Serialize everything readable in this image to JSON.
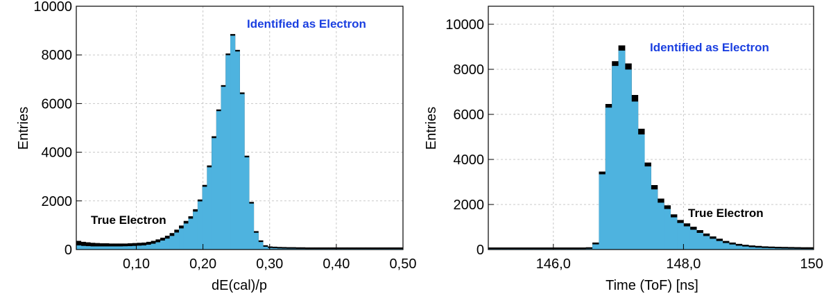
{
  "chart_data": [
    {
      "type": "bar",
      "xlabel": "dE(cal)/p",
      "ylabel": "Entries",
      "xlim": [
        0.01,
        0.5
      ],
      "ylim": [
        0,
        10000
      ],
      "x_ticks": [
        "0,10",
        "0,20",
        "0,30",
        "0,40",
        "0,50"
      ],
      "x_tick_values": [
        0.1,
        0.2,
        0.3,
        0.4,
        0.5
      ],
      "y_ticks": [
        "0",
        "2000",
        "4000",
        "6000",
        "8000",
        "10000"
      ],
      "y_tick_values": [
        0,
        2000,
        4000,
        6000,
        8000,
        10000
      ],
      "grid": true,
      "bin_width": 0.007,
      "annotations": [
        {
          "text": "Identified as Electron",
          "color": "#1a3fe0"
        },
        {
          "text": "True Electron",
          "color": "#000000"
        }
      ],
      "series": [
        {
          "name": "True Electron",
          "color": "#000000",
          "x": [
            0.01,
            0.017,
            0.024,
            0.031,
            0.038,
            0.045,
            0.052,
            0.059,
            0.066,
            0.073,
            0.08,
            0.087,
            0.094,
            0.101,
            0.108,
            0.115,
            0.122,
            0.129,
            0.136,
            0.143,
            0.15,
            0.157,
            0.164,
            0.171,
            0.178,
            0.185,
            0.192,
            0.199,
            0.206,
            0.213,
            0.22,
            0.227,
            0.234,
            0.241,
            0.248,
            0.255,
            0.262,
            0.269,
            0.276,
            0.283,
            0.29,
            0.297,
            0.304,
            0.311,
            0.318,
            0.325,
            0.332,
            0.339,
            0.346,
            0.353,
            0.36,
            0.367,
            0.374,
            0.381,
            0.388,
            0.395,
            0.402,
            0.409,
            0.416,
            0.423,
            0.43,
            0.437,
            0.444,
            0.451,
            0.458,
            0.465,
            0.472,
            0.479,
            0.486,
            0.493
          ],
          "values": [
            300,
            260,
            240,
            220,
            210,
            200,
            200,
            190,
            190,
            190,
            190,
            200,
            210,
            220,
            230,
            260,
            300,
            360,
            430,
            510,
            620,
            760,
            930,
            1120,
            1310,
            1600,
            2000,
            2600,
            3400,
            4600,
            5700,
            6700,
            8000,
            8800,
            8150,
            6400,
            3800,
            1900,
            700,
            320,
            120,
            70,
            60,
            50,
            45,
            40,
            40,
            35,
            35,
            30,
            30,
            30,
            30,
            30,
            30,
            30,
            30,
            30,
            30,
            30,
            30,
            30,
            30,
            30,
            30,
            30,
            30,
            30,
            30,
            30
          ]
        },
        {
          "name": "Identified as Electron",
          "color": "#4eb3df",
          "x": [
            0.01,
            0.017,
            0.024,
            0.031,
            0.038,
            0.045,
            0.052,
            0.059,
            0.066,
            0.073,
            0.08,
            0.087,
            0.094,
            0.101,
            0.108,
            0.115,
            0.122,
            0.129,
            0.136,
            0.143,
            0.15,
            0.157,
            0.164,
            0.171,
            0.178,
            0.185,
            0.192,
            0.199,
            0.206,
            0.213,
            0.22,
            0.227,
            0.234,
            0.241,
            0.248,
            0.255,
            0.262,
            0.269,
            0.276,
            0.283,
            0.29,
            0.297,
            0.304,
            0.311,
            0.318,
            0.325,
            0.332,
            0.339,
            0.346,
            0.353,
            0.36,
            0.367,
            0.374,
            0.381,
            0.388,
            0.395,
            0.402,
            0.409,
            0.416,
            0.423,
            0.43,
            0.437,
            0.444,
            0.451,
            0.458,
            0.465,
            0.472,
            0.479,
            0.486,
            0.493
          ],
          "values": [
            170,
            150,
            140,
            130,
            130,
            130,
            130,
            130,
            130,
            130,
            135,
            140,
            150,
            160,
            170,
            200,
            240,
            300,
            370,
            450,
            560,
            700,
            870,
            1070,
            1270,
            1560,
            1980,
            2580,
            3380,
            4580,
            5690,
            6690,
            7990,
            8790,
            8140,
            6390,
            3790,
            1890,
            690,
            310,
            115,
            65,
            55,
            45,
            40,
            35,
            35,
            30,
            30,
            25,
            25,
            25,
            25,
            25,
            25,
            25,
            25,
            25,
            25,
            25,
            25,
            25,
            25,
            25,
            25,
            25,
            25,
            25,
            25,
            25
          ]
        }
      ]
    },
    {
      "type": "bar",
      "xlabel": "Time (ToF) [ns]",
      "ylabel": "Entries",
      "xlim": [
        145.0,
        150.0
      ],
      "ylim": [
        0,
        10800
      ],
      "x_ticks": [
        "146,0",
        "148,0",
        "150,"
      ],
      "x_tick_values": [
        146.0,
        148.0,
        150.0
      ],
      "y_ticks": [
        "0",
        "2000",
        "4000",
        "6000",
        "8000",
        "10000"
      ],
      "y_tick_values": [
        0,
        2000,
        4000,
        6000,
        8000,
        10000
      ],
      "grid": true,
      "bin_width": 0.1,
      "annotations": [
        {
          "text": "Identified as Electron",
          "color": "#1a3fe0"
        },
        {
          "text": "True Electron",
          "color": "#000000"
        }
      ],
      "series": [
        {
          "name": "True Electron",
          "color": "#000000",
          "x": [
            145.0,
            145.1,
            145.2,
            145.3,
            145.4,
            145.5,
            145.6,
            145.7,
            145.8,
            145.9,
            146.0,
            146.1,
            146.2,
            146.3,
            146.4,
            146.5,
            146.6,
            146.7,
            146.8,
            146.9,
            147.0,
            147.1,
            147.2,
            147.3,
            147.4,
            147.5,
            147.6,
            147.7,
            147.8,
            147.9,
            148.0,
            148.1,
            148.2,
            148.3,
            148.4,
            148.5,
            148.6,
            148.7,
            148.8,
            148.9,
            149.0,
            149.1,
            149.2,
            149.3,
            149.4,
            149.5,
            149.6,
            149.7,
            149.8,
            149.9
          ],
          "values": [
            30,
            30,
            30,
            30,
            30,
            30,
            30,
            30,
            30,
            30,
            30,
            30,
            30,
            30,
            30,
            40,
            250,
            3400,
            6400,
            8300,
            9000,
            8200,
            6800,
            5300,
            3800,
            2800,
            2200,
            1900,
            1500,
            1250,
            1100,
            950,
            800,
            650,
            520,
            420,
            320,
            250,
            190,
            150,
            120,
            100,
            80,
            70,
            60,
            55,
            50,
            45,
            40,
            40
          ]
        },
        {
          "name": "Identified as Electron",
          "color": "#4eb3df",
          "x": [
            145.0,
            145.1,
            145.2,
            145.3,
            145.4,
            145.5,
            145.6,
            145.7,
            145.8,
            145.9,
            146.0,
            146.1,
            146.2,
            146.3,
            146.4,
            146.5,
            146.6,
            146.7,
            146.8,
            146.9,
            147.0,
            147.1,
            147.2,
            147.3,
            147.4,
            147.5,
            147.6,
            147.7,
            147.8,
            147.9,
            148.0,
            148.1,
            148.2,
            148.3,
            148.4,
            148.5,
            148.6,
            148.7,
            148.8,
            148.9,
            149.0,
            149.1,
            149.2,
            149.3,
            149.4,
            149.5,
            149.6,
            149.7,
            149.8,
            149.9
          ],
          "values": [
            25,
            25,
            25,
            25,
            25,
            25,
            25,
            25,
            25,
            25,
            25,
            25,
            25,
            25,
            25,
            35,
            230,
            3340,
            6300,
            8150,
            8830,
            7990,
            6570,
            5110,
            3690,
            2670,
            2080,
            1800,
            1430,
            1180,
            1030,
            880,
            740,
            600,
            480,
            380,
            290,
            225,
            170,
            135,
            105,
            85,
            70,
            60,
            50,
            45,
            40,
            35,
            30,
            30
          ]
        }
      ]
    }
  ]
}
